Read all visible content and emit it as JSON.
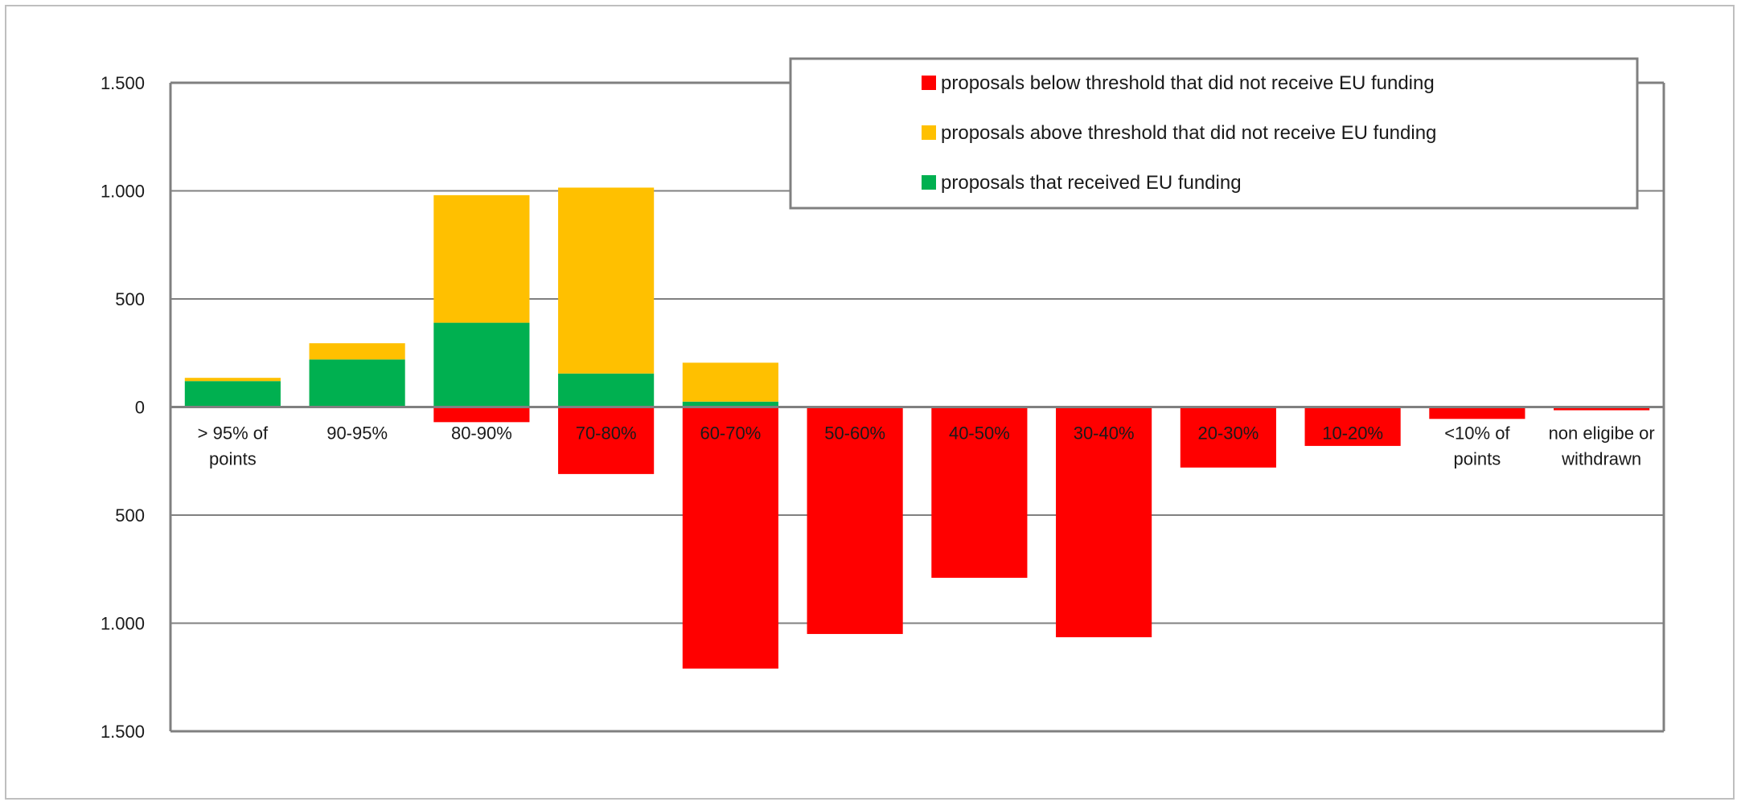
{
  "chart_data": {
    "type": "bar",
    "stacked": true,
    "categories": [
      [
        "> 95% of",
        "points"
      ],
      [
        "90-95%"
      ],
      [
        "80-90%"
      ],
      [
        "70-80%"
      ],
      [
        "60-70%"
      ],
      [
        "50-60%"
      ],
      [
        "40-50%"
      ],
      [
        "30-40%"
      ],
      [
        "20-30%"
      ],
      [
        "10-20%"
      ],
      [
        "<10% of",
        "points"
      ],
      [
        "non eligibe or",
        "withdrawn"
      ]
    ],
    "series": [
      {
        "name": "proposals below threshold that did not receive EU funding",
        "color": "#ff0000",
        "direction": "down",
        "values": [
          0,
          0,
          70,
          310,
          1210,
          1050,
          790,
          1065,
          280,
          180,
          55,
          15
        ]
      },
      {
        "name": "proposals above threshold that did not receive EU funding",
        "color": "#ffc000",
        "direction": "up",
        "values": [
          15,
          75,
          590,
          860,
          180,
          0,
          0,
          0,
          0,
          0,
          0,
          0
        ]
      },
      {
        "name": "proposals that received EU funding",
        "color": "#00b050",
        "direction": "up",
        "values": [
          120,
          220,
          390,
          155,
          25,
          0,
          0,
          0,
          0,
          0,
          0,
          0
        ]
      }
    ],
    "y_ticks": [
      1500,
      1000,
      500,
      0,
      -500,
      -1000,
      -1500
    ],
    "y_tick_labels": [
      "1.500",
      "1.000",
      "500",
      "0",
      "500",
      "1.000",
      "1.500"
    ],
    "ylim": [
      -1500,
      1500
    ],
    "grid": true,
    "legend_position": "top-right",
    "legend_order": [
      0,
      1,
      2
    ]
  }
}
